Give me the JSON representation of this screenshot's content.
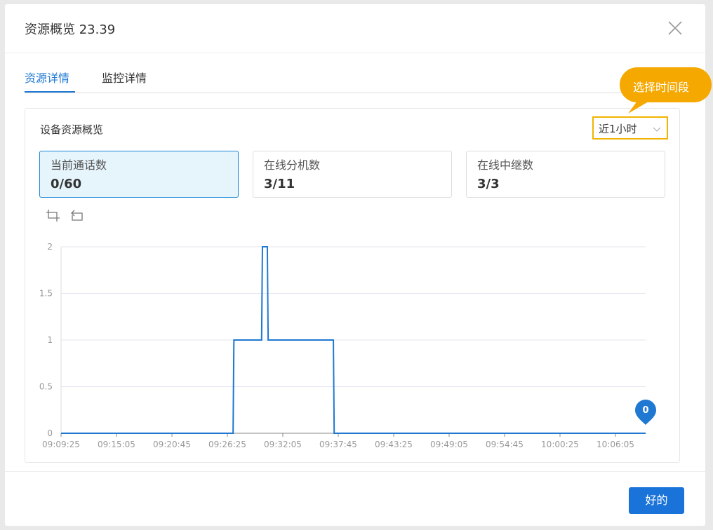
{
  "dialog": {
    "title": "资源概览 23.39",
    "tabs": [
      "资源详情",
      "监控详情"
    ],
    "button": "好的"
  },
  "card": {
    "title": "设备资源概览",
    "range": "近1小时",
    "tooltip": "选择时间段",
    "stats": [
      {
        "label": "当前通话数",
        "value": "0/60"
      },
      {
        "label": "在线分机数",
        "value": "3/11"
      },
      {
        "label": "在线中继数",
        "value": "3/3"
      }
    ]
  },
  "chart_data": {
    "type": "line",
    "color": "#1f78d1",
    "grid": true,
    "x": [
      "09:09:25",
      "09:27:00",
      "09:27:05",
      "09:29:55",
      "09:30:00",
      "09:30:30",
      "09:30:35",
      "09:37:15",
      "09:37:20",
      "10:09:10"
    ],
    "values": [
      0,
      0,
      1,
      1,
      2,
      2,
      1,
      1,
      0,
      0
    ],
    "xlim": [
      "09:09:25",
      "10:09:10"
    ],
    "xticks": [
      "09:09:25",
      "09:15:05",
      "09:20:45",
      "09:26:25",
      "09:32:05",
      "09:37:45",
      "09:43:25",
      "09:49:05",
      "09:54:45",
      "10:00:25",
      "10:06:05"
    ],
    "ylim": [
      0,
      2
    ],
    "yticks": [
      0,
      0.5,
      1,
      1.5,
      2
    ]
  }
}
